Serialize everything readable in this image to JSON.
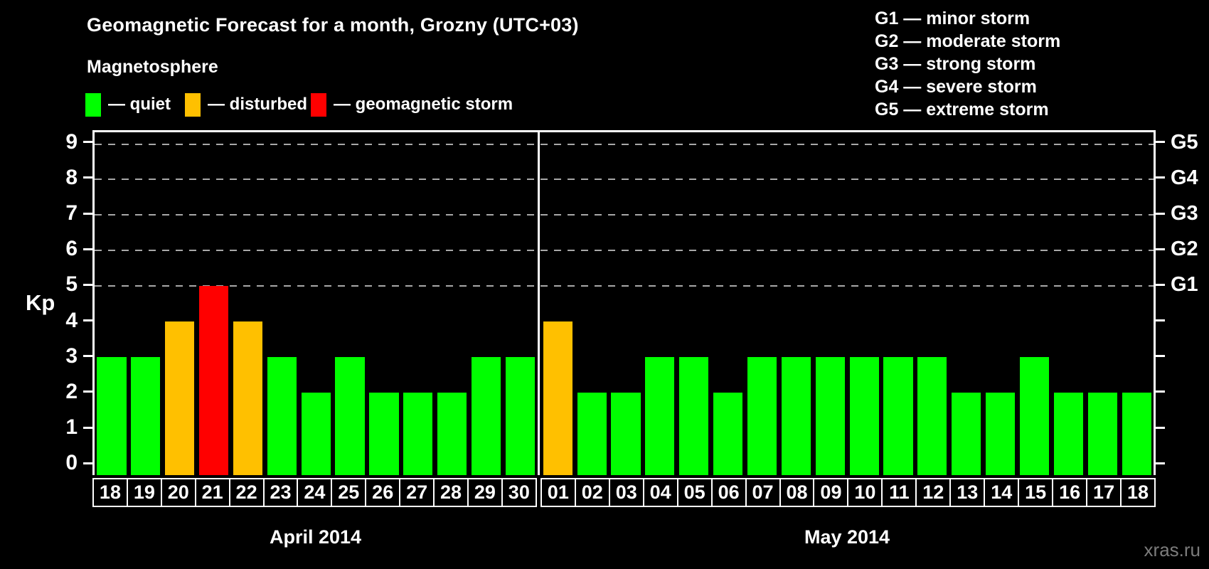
{
  "title": "Geomagnetic Forecast for a month, Grozny (UTC+03)",
  "legend": {
    "heading": "Magnetosphere",
    "items": [
      {
        "name": "quiet",
        "label": "— quiet",
        "color": "#00ff00"
      },
      {
        "name": "disturbed",
        "label": "— disturbed",
        "color": "#ffc000"
      },
      {
        "name": "geomagnetic-storm",
        "label": "— geomagnetic storm",
        "color": "#ff0000"
      }
    ]
  },
  "storm_scale_legend": [
    "G1 — minor storm",
    "G2 — moderate storm",
    "G3 — strong storm",
    "G4 — severe storm",
    "G5 — extreme storm"
  ],
  "watermark": "xras.ru",
  "chart_data": {
    "type": "bar",
    "title": "Geomagnetic Forecast for a month, Grozny (UTC+03)",
    "ylabel": "Kp",
    "ylim": [
      0,
      9
    ],
    "y_axis_padding_units": 0.3333,
    "y_ticks": [
      0,
      1,
      2,
      3,
      4,
      5,
      6,
      7,
      8,
      9
    ],
    "gridlines_at": [
      5,
      6,
      7,
      8,
      9
    ],
    "grid_style": "dashed",
    "right_axis": [
      {
        "kp": 5,
        "label": "G1"
      },
      {
        "kp": 6,
        "label": "G2"
      },
      {
        "kp": 7,
        "label": "G3"
      },
      {
        "kp": 8,
        "label": "G4"
      },
      {
        "kp": 9,
        "label": "G5"
      }
    ],
    "colors": {
      "quiet": "#00ff00",
      "disturbed": "#ffc000",
      "storm": "#ff0000"
    },
    "color_rule": {
      "disturbed_min": 4,
      "storm_min": 5
    },
    "groups": [
      {
        "label": "April 2014",
        "days": [
          "18",
          "19",
          "20",
          "21",
          "22",
          "23",
          "24",
          "25",
          "26",
          "27",
          "28",
          "29",
          "30"
        ],
        "values": [
          3,
          3,
          4,
          5,
          4,
          3,
          2,
          3,
          2,
          2,
          2,
          3,
          3
        ]
      },
      {
        "label": "May 2014",
        "days": [
          "01",
          "02",
          "03",
          "04",
          "05",
          "06",
          "07",
          "08",
          "09",
          "10",
          "11",
          "12",
          "13",
          "14",
          "15",
          "16",
          "17",
          "18"
        ],
        "values": [
          4,
          2,
          2,
          3,
          3,
          2,
          3,
          3,
          3,
          3,
          3,
          3,
          2,
          2,
          3,
          2,
          2,
          2
        ]
      }
    ]
  }
}
